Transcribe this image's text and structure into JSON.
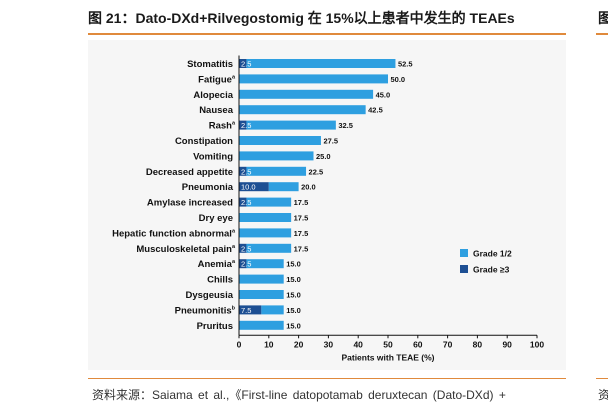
{
  "figure_title": "图 21：Dato-DXd+Rilvegostomig 在 15%以上患者中发生的 TEAEs",
  "source_text": "资料来源：Saiama et al.,《First-line datopotamab deruxtecan (Dato-DXd) +",
  "edge_char_top": "图",
  "edge_char_bottom": "资",
  "colors": {
    "grade12": "#2e9fe0",
    "grade3": "#1d4f93",
    "accent_rule": "#e08a3c"
  },
  "chart_data": {
    "type": "bar",
    "orientation": "horizontal",
    "stacked": true,
    "categories": [
      "Stomatitis",
      "Fatigue",
      "Alopecia",
      "Nausea",
      "Rash",
      "Constipation",
      "Vomiting",
      "Decreased appetite",
      "Pneumonia",
      "Amylase increased",
      "Dry eye",
      "Hepatic function abnormal",
      "Musculoskeletal pain",
      "Anemia",
      "Chills",
      "Dysgeusia",
      "Pneumonitis",
      "Pruritus"
    ],
    "category_superscripts": [
      "",
      "a",
      "",
      "",
      "a",
      "",
      "",
      "",
      "",
      "",
      "",
      "a",
      "a",
      "a",
      "",
      "",
      "b",
      ""
    ],
    "totals": [
      52.5,
      50.0,
      45.0,
      42.5,
      32.5,
      27.5,
      25.0,
      22.5,
      20.0,
      17.5,
      17.5,
      17.5,
      17.5,
      15.0,
      15.0,
      15.0,
      15.0,
      15.0
    ],
    "total_labels": [
      "52.5",
      "50.0",
      "45.0",
      "42.5",
      "32.5",
      "27.5",
      "25.0",
      "22.5",
      "20.0",
      "17.5",
      "17.5",
      "17.5",
      "17.5",
      "15.0",
      "15.0",
      "15.0",
      "15.0",
      "15.0"
    ],
    "series": [
      {
        "name": "Grade 1/2",
        "values": [
          50.0,
          50.0,
          45.0,
          42.5,
          30.0,
          27.5,
          25.0,
          20.0,
          10.0,
          15.0,
          17.5,
          17.5,
          15.0,
          12.5,
          15.0,
          15.0,
          7.5,
          15.0
        ]
      },
      {
        "name": "Grade ≥3",
        "values": [
          2.5,
          0,
          0,
          0,
          2.5,
          0,
          0,
          2.5,
          10.0,
          2.5,
          0,
          0,
          2.5,
          2.5,
          0,
          0,
          7.5,
          0
        ]
      }
    ],
    "grade3_labels": [
      "2.5",
      "",
      "",
      "",
      "2.5",
      "",
      "",
      "2.5",
      "10.0",
      "2.5",
      "",
      "",
      "2.5",
      "2.5",
      "",
      "",
      "7.5",
      ""
    ],
    "xlabel": "Patients with TEAE (%)",
    "xlim": [
      0,
      100
    ],
    "xticks": [
      0,
      10,
      20,
      30,
      40,
      50,
      60,
      70,
      80,
      90,
      100
    ],
    "legend_position": "right",
    "grid": false
  }
}
